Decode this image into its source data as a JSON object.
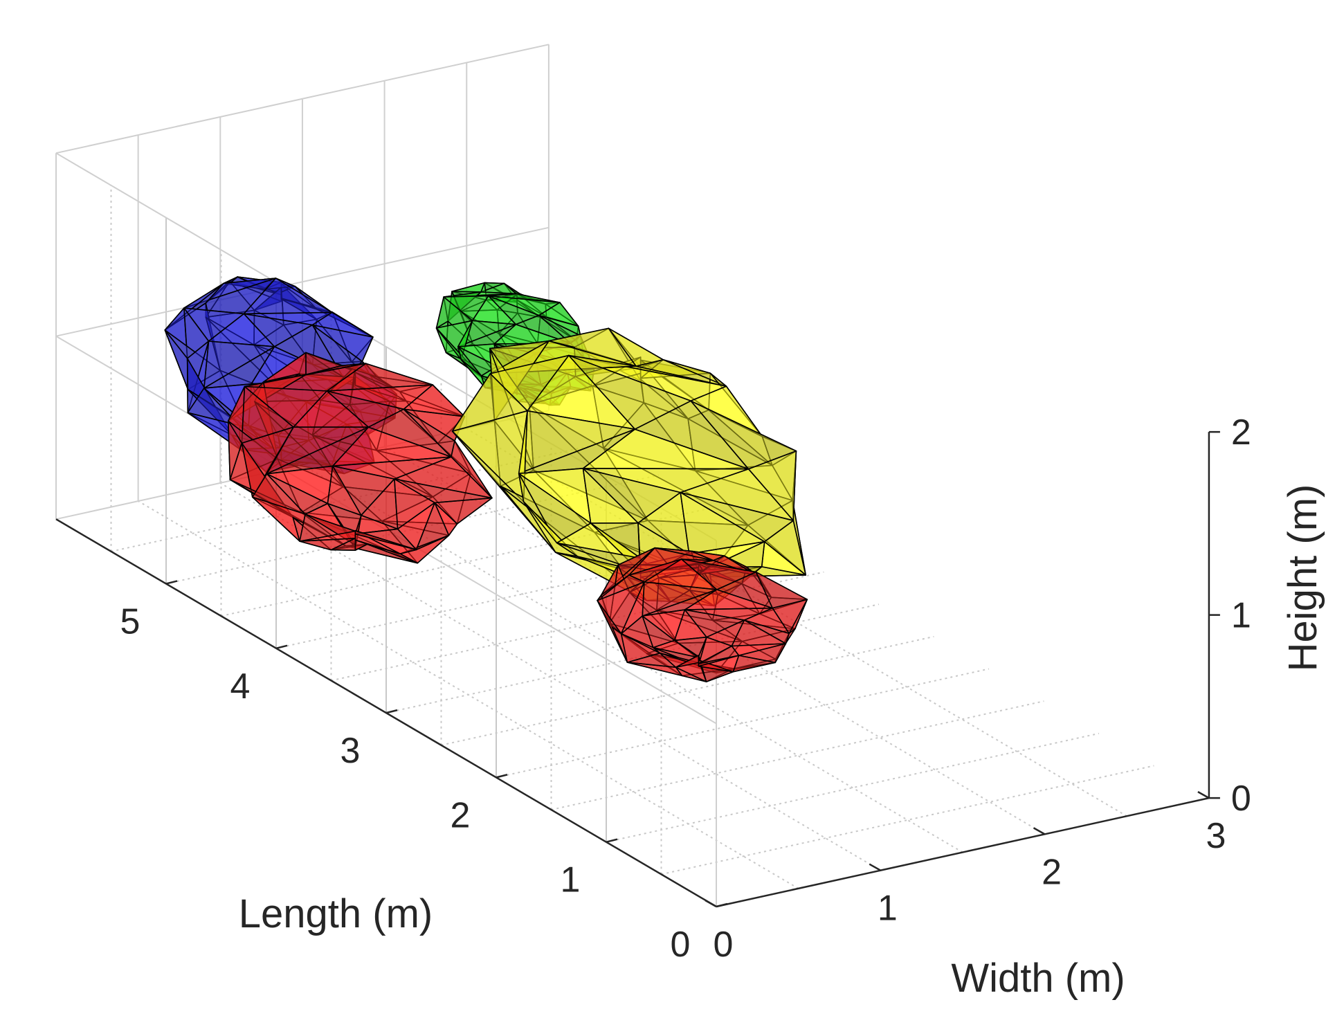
{
  "chart_data": {
    "type": "surface3d",
    "title": "",
    "axes": {
      "x": {
        "label": "Width (m)",
        "range": [
          0,
          3
        ],
        "ticks": [
          "0",
          "1",
          "2",
          "3"
        ]
      },
      "y": {
        "label": "Length (m)",
        "range": [
          0,
          6
        ],
        "ticks": [
          "0",
          "1",
          "2",
          "3",
          "4",
          "5"
        ]
      },
      "z": {
        "label": "Height (m)",
        "range": [
          0,
          2
        ],
        "ticks": [
          "0",
          "1",
          "2"
        ]
      }
    },
    "grid": true,
    "legend": "none",
    "series": [
      {
        "color": "#1f1fe0",
        "x_extent": [
          0.1,
          0.9
        ],
        "y_extent": [
          3.9,
          5.5
        ],
        "z_extent": [
          0.7,
          1.6
        ]
      },
      {
        "color": "#ff1f1f",
        "x_extent": [
          0.2,
          1.3
        ],
        "y_extent": [
          3.6,
          5.2
        ],
        "z_extent": [
          0.3,
          1.2
        ]
      },
      {
        "color": "#1fe01f",
        "x_extent": [
          1.2,
          1.8
        ],
        "y_extent": [
          3.5,
          4.6
        ],
        "z_extent": [
          1.1,
          1.6
        ]
      },
      {
        "color": "#ffff1f",
        "x_extent": [
          1.0,
          2.3
        ],
        "y_extent": [
          1.9,
          4.4
        ],
        "z_extent": [
          0.4,
          1.5
        ]
      },
      {
        "color": "#ff1f1f",
        "x_extent": [
          1.0,
          2.0
        ],
        "y_extent": [
          1.8,
          3.0
        ],
        "z_extent": [
          0.2,
          0.7
        ]
      }
    ]
  }
}
